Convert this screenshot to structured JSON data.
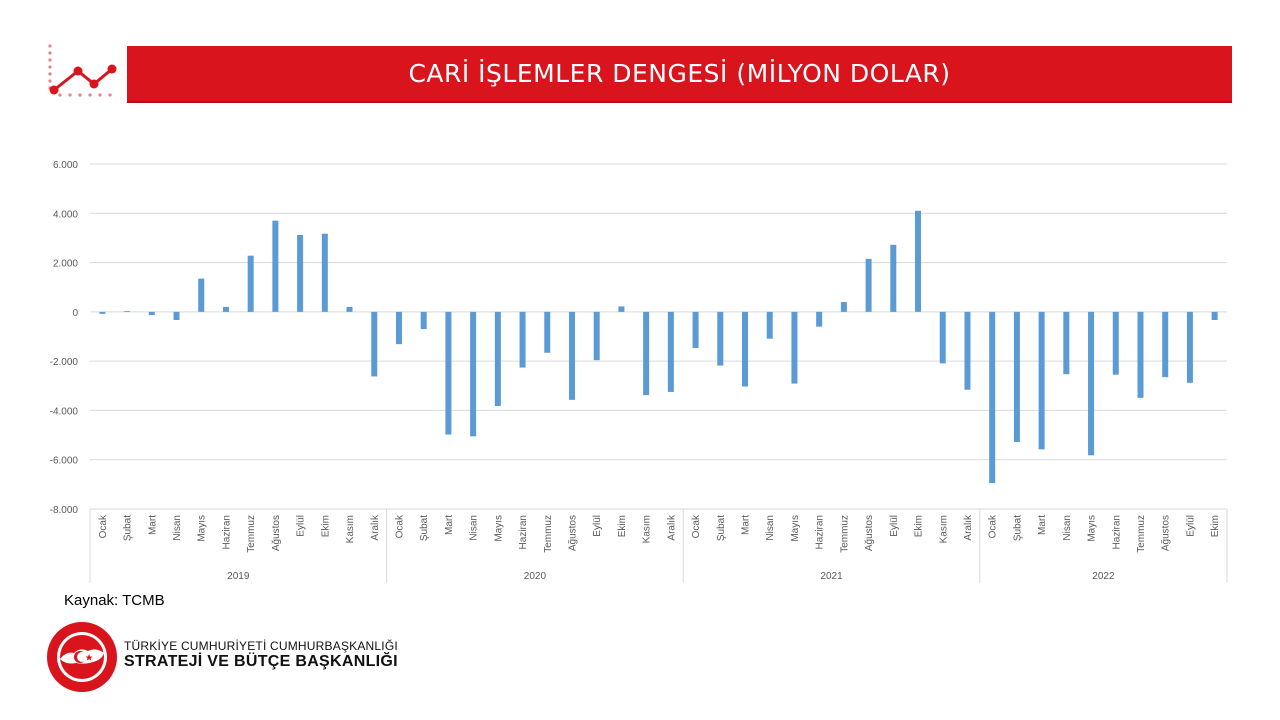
{
  "header": {
    "title": "CARİ İŞLEMLER DENGESİ (MİLYON DOLAR)"
  },
  "footer": {
    "source": "Kaynak: TCMB",
    "org_line1": "TÜRKİYE CUMHURİYETİ CUMHURBAŞKANLIĞI",
    "org_line2": "STRATEJİ VE BÜTÇE BAŞKANLIĞI"
  },
  "colors": {
    "bar": "#5b9bd5",
    "title_bg": "#d9141c",
    "grid": "#d9d9d9"
  },
  "chart_data": {
    "type": "bar",
    "title": "",
    "ylim": [
      -8000,
      6000
    ],
    "y_ticks": [
      6000,
      4000,
      2000,
      0,
      -2000,
      -4000,
      -6000,
      -8000
    ],
    "y_tick_labels": [
      "6.000",
      "4.000",
      "2.000",
      "0",
      "-2.000",
      "-4.000",
      "-6.000",
      "-8.000"
    ],
    "grid": true,
    "years": [
      "2019",
      "2020",
      "2021",
      "2022"
    ],
    "months_per_year": [
      [
        "Ocak",
        "Şubat",
        "Mart",
        "Nisan",
        "Mayıs",
        "Haziran",
        "Temmuz",
        "Ağustos",
        "Eylül",
        "Ekim",
        "Kasım",
        "Aralık"
      ],
      [
        "Ocak",
        "Şubat",
        "Mart",
        "Nisan",
        "Mayıs",
        "Haziran",
        "Temmuz",
        "Ağustos",
        "Eylül",
        "Ekim",
        "Kasım",
        "Aralık"
      ],
      [
        "Ocak",
        "Şubat",
        "Mart",
        "Nisan",
        "Mayıs",
        "Haziran",
        "Temmuz",
        "Ağustos",
        "Eylül",
        "Ekim",
        "Kasım",
        "Aralık"
      ],
      [
        "Ocak",
        "Şubat",
        "Mart",
        "Nisan",
        "Mayıs",
        "Haziran",
        "Temmuz",
        "Ağustos",
        "Eylül",
        "Ekim"
      ]
    ],
    "values": [
      -80,
      30,
      -130,
      -330,
      1350,
      200,
      2280,
      3700,
      3120,
      3170,
      200,
      -2620,
      -1310,
      -700,
      -4980,
      -5050,
      -3820,
      -2260,
      -1660,
      -3570,
      -1960,
      220,
      -3380,
      -3250,
      -1470,
      -2180,
      -3030,
      -1090,
      -2910,
      -600,
      400,
      2150,
      2720,
      4100,
      -2090,
      -3160,
      -6950,
      -5280,
      -5580,
      -2530,
      -5820,
      -2550,
      -3490,
      -2650,
      -2880,
      -330
    ]
  }
}
